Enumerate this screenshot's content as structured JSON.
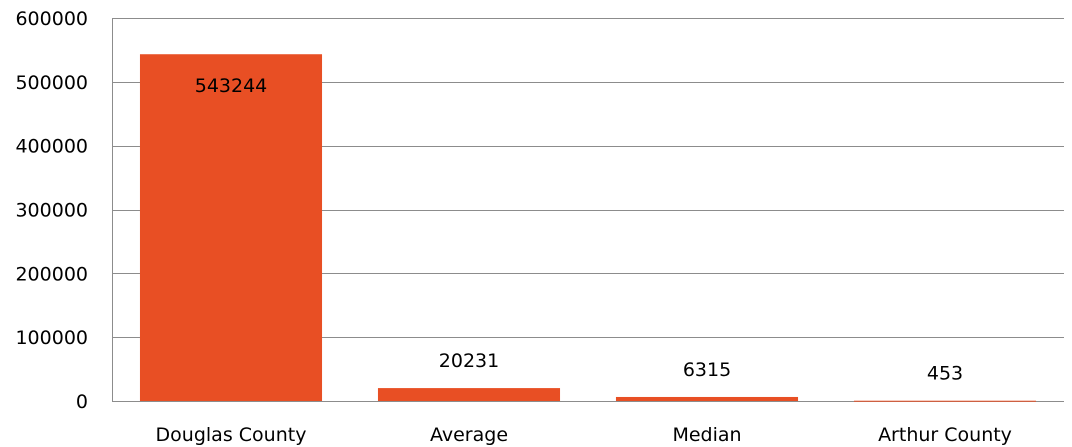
{
  "chart_data": {
    "type": "bar",
    "title": "",
    "xlabel": "",
    "ylabel": "",
    "categories": [
      "Douglas County",
      "Average",
      "Median",
      "Arthur County"
    ],
    "values": [
      543244,
      20231,
      6315,
      453
    ],
    "data_labels": [
      "543244",
      "20231",
      "6315",
      "453"
    ],
    "ylim": [
      0,
      600000
    ],
    "yticks": [
      0,
      100000,
      200000,
      300000,
      400000,
      500000,
      600000
    ],
    "ytick_labels": [
      "0",
      "100000",
      "200000",
      "300000",
      "400000",
      "500000",
      "600000"
    ],
    "grid": true,
    "legend": "none",
    "colors": {
      "bar": "#E84F24",
      "grid": "#8C8C8C",
      "axis": "#8C8C8C"
    }
  }
}
